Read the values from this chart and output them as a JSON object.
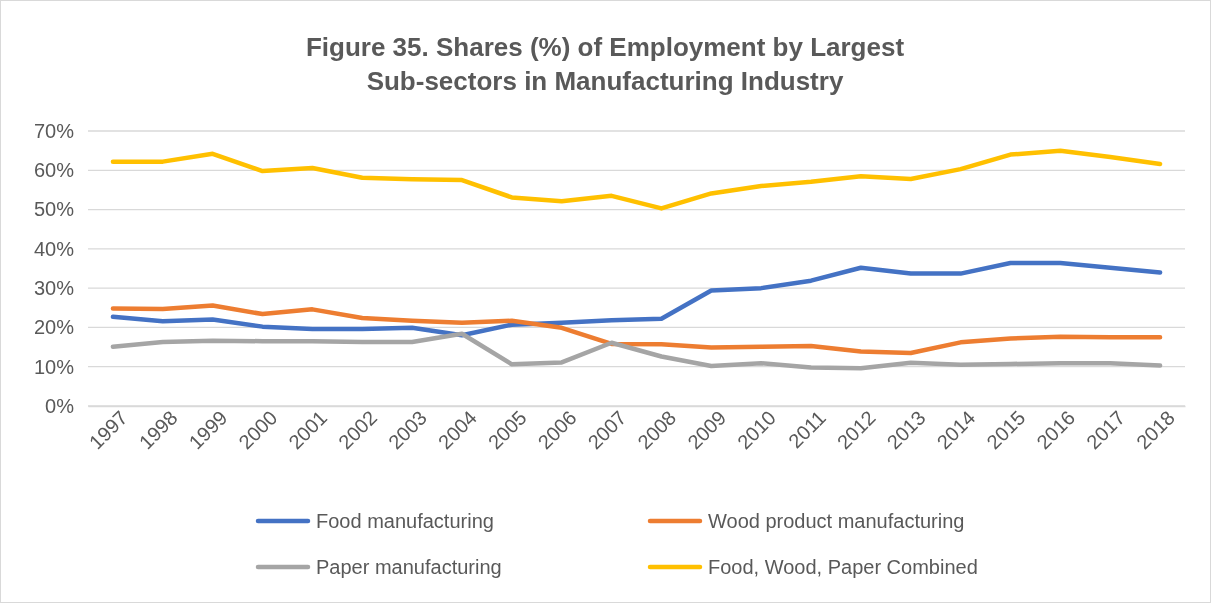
{
  "chart_data": {
    "type": "line",
    "title": "Figure 35. Shares (%) of Employment by Largest Sub-sectors in Manufacturing Industry",
    "categories": [
      "1997",
      "1998",
      "1999",
      "2000",
      "2001",
      "2002",
      "2003",
      "2004",
      "2005",
      "2006",
      "2007",
      "2008",
      "2009",
      "2010",
      "2011",
      "2012",
      "2013",
      "2014",
      "2015",
      "2016",
      "2017",
      "2018"
    ],
    "series": [
      {
        "name": "Food manufacturing",
        "color": "#4472c4",
        "values": [
          22.7,
          21.6,
          22.0,
          20.2,
          19.6,
          19.6,
          19.9,
          18.0,
          20.7,
          21.2,
          21.8,
          22.2,
          29.4,
          30.0,
          31.9,
          35.2,
          33.7,
          33.7,
          36.4,
          36.4,
          35.2,
          34.0
        ]
      },
      {
        "name": "Wood product manufacturing",
        "color": "#ed7d31",
        "values": [
          24.8,
          24.7,
          25.6,
          23.4,
          24.6,
          22.4,
          21.7,
          21.2,
          21.7,
          19.9,
          15.8,
          15.7,
          14.9,
          15.1,
          15.3,
          13.9,
          13.5,
          16.2,
          17.2,
          17.6,
          17.5,
          17.5
        ]
      },
      {
        "name": "Paper manufacturing",
        "color": "#a5a5a5",
        "values": [
          15.1,
          16.3,
          16.6,
          16.5,
          16.5,
          16.3,
          16.3,
          18.4,
          10.6,
          11.1,
          16.1,
          12.6,
          10.2,
          10.9,
          9.8,
          9.6,
          11.0,
          10.5,
          10.7,
          10.9,
          10.9,
          10.3
        ]
      },
      {
        "name": "Food, Wood, Paper Combined",
        "color": "#ffc000",
        "values": [
          62.2,
          62.2,
          64.2,
          59.8,
          60.6,
          58.1,
          57.7,
          57.5,
          53.1,
          52.1,
          53.5,
          50.3,
          54.1,
          56.0,
          57.1,
          58.5,
          57.8,
          60.3,
          64.0,
          65.0,
          63.4,
          61.6
        ]
      }
    ],
    "ylim": [
      0,
      70
    ],
    "yticks": [
      {
        "value": 0,
        "label": "0%"
      },
      {
        "value": 10,
        "label": "10%"
      },
      {
        "value": 20,
        "label": "20%"
      },
      {
        "value": 30,
        "label": "30%"
      },
      {
        "value": 40,
        "label": "40%"
      },
      {
        "value": 50,
        "label": "50%"
      },
      {
        "value": 60,
        "label": "60%"
      },
      {
        "value": 70,
        "label": "70%"
      }
    ],
    "grid": "y",
    "legend": "bottom",
    "marker": "none",
    "line_style": "solid"
  }
}
